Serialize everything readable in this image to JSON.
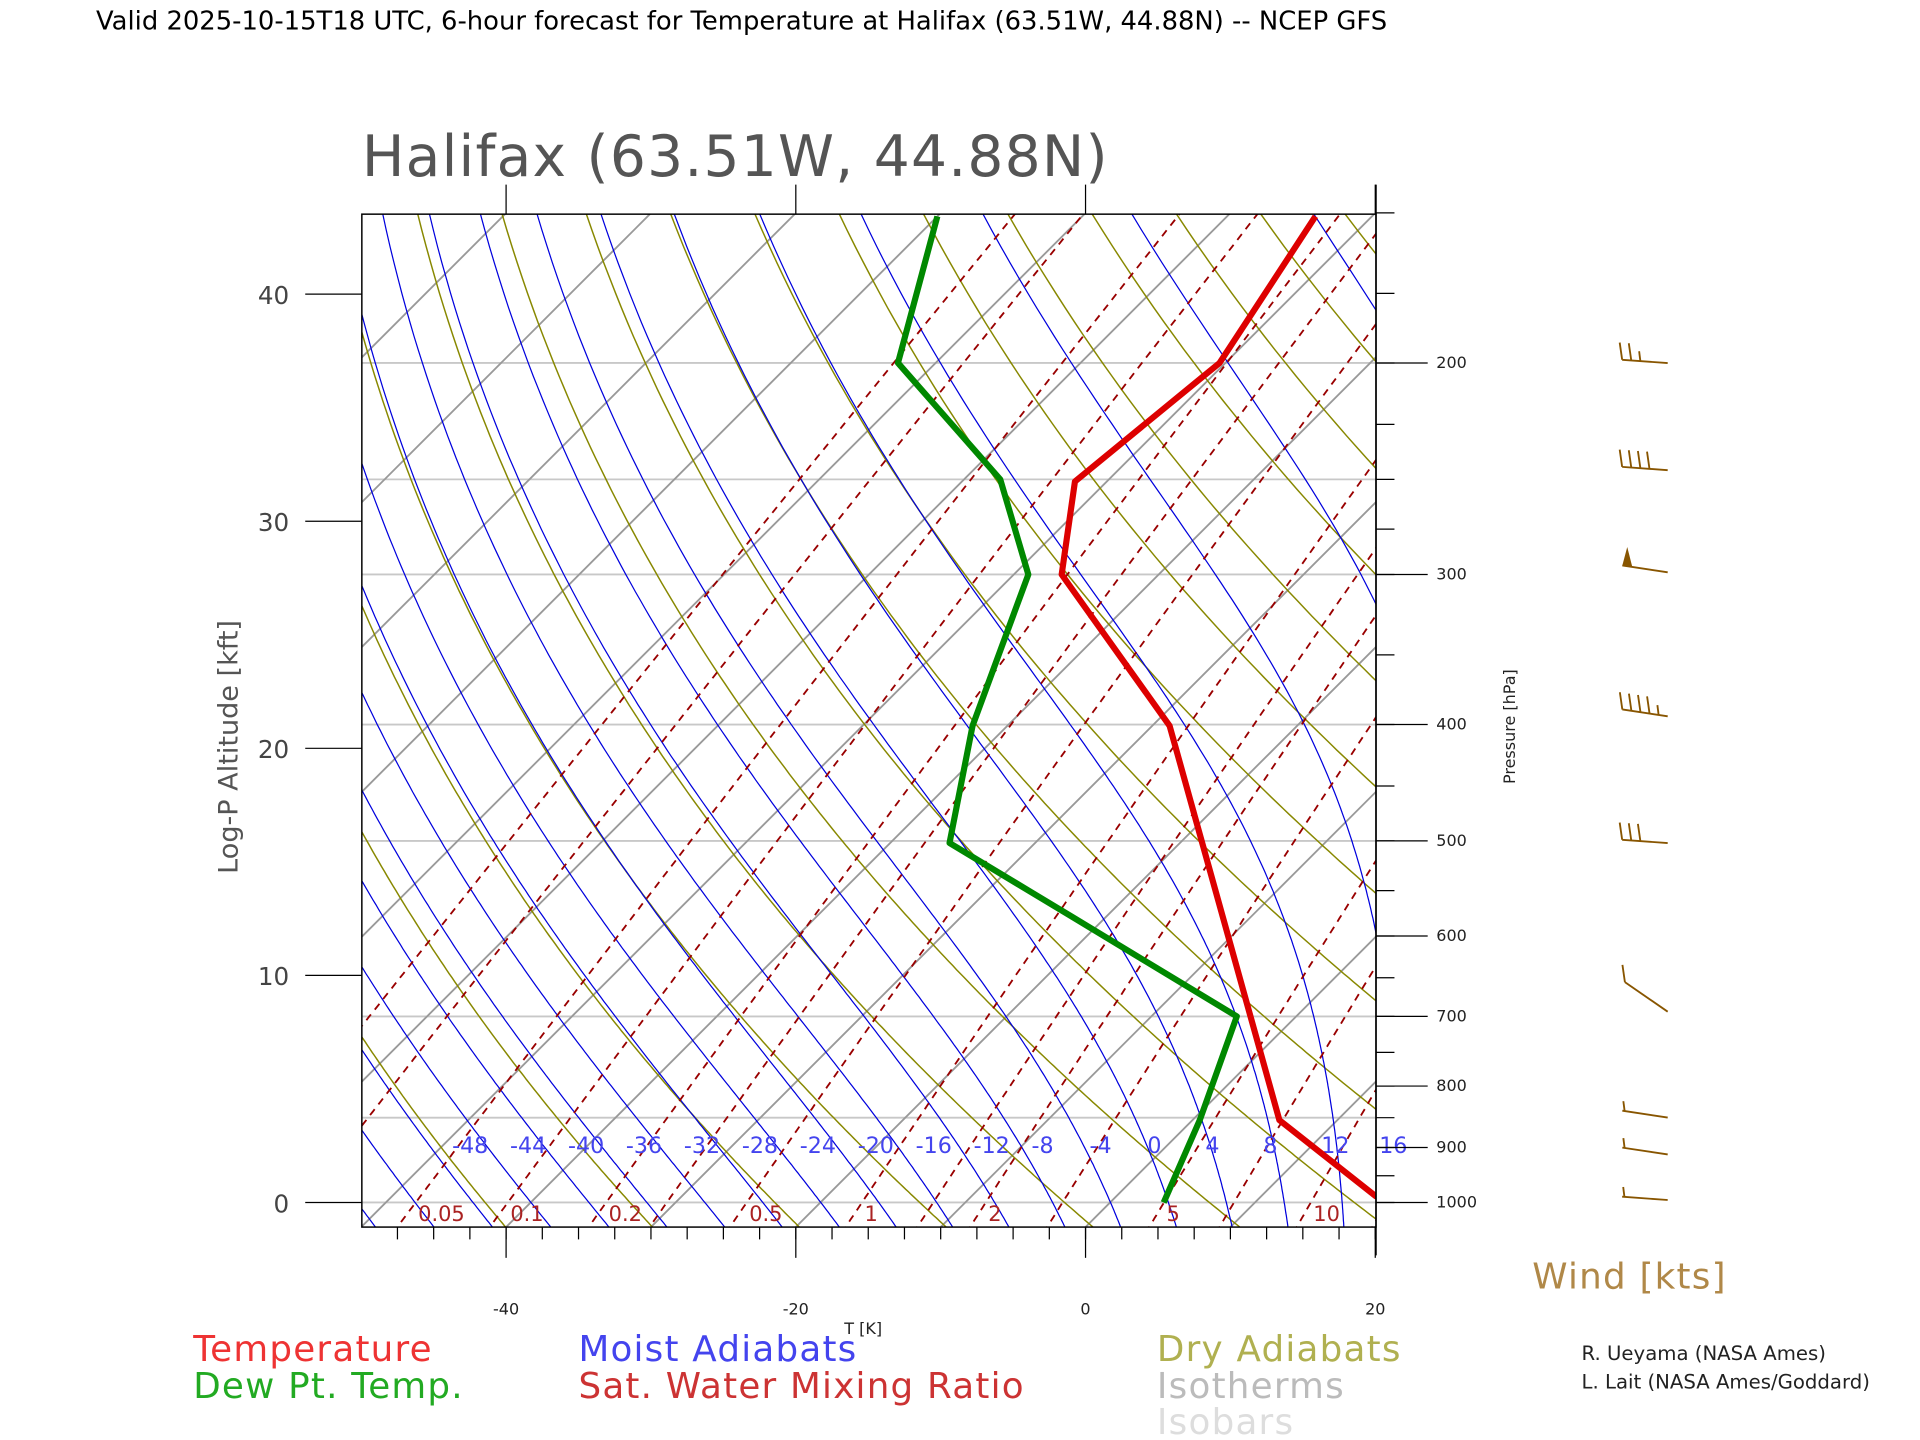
{
  "header": {
    "title": "Valid 2025-10-15T18 UTC, 6-hour forecast for Temperature at Halifax (63.51W, 44.88N) -- NCEP GFS"
  },
  "plot": {
    "station_title": "Halifax (63.51W, 44.88N)",
    "left_axis_label": "Log-P Altitude [kft]",
    "right_axis_label": "Pressure [hPa]",
    "bottom_axis_label": "T [K]",
    "wind_label": "Wind [kts]"
  },
  "legend": {
    "temperature": "Temperature",
    "dewpoint": "Dew Pt. Temp.",
    "moist": "Moist Adiabats",
    "mixing": "Sat. Water Mixing Ratio",
    "dry": "Dry Adiabats",
    "isotherms": "Isotherms",
    "isobars": "Isobars"
  },
  "credits": [
    "R. Ueyama (NASA Ames)",
    "L. Lait (NASA Ames/Goddard)"
  ],
  "colors": {
    "temperature": "#dd0000",
    "dewpoint": "#008800",
    "moist": "#0000dd",
    "mixing": "#990000",
    "dry": "#888800",
    "isotherm": "#999999",
    "isobar": "#c8c8c8",
    "wind": "#885500"
  },
  "chart_data": {
    "type": "line",
    "title": "Halifax (63.51W, 44.88N)",
    "xlabel": "T [K]",
    "ylabel": "Log-P Altitude [kft]",
    "y2label": "Pressure [hPa]",
    "xlim": [
      -50,
      20
    ],
    "pressure_range": [
      1050,
      144
    ],
    "x_ticks": [
      "-40",
      "-20",
      "0",
      "20"
    ],
    "x_tick_values": [
      -40,
      -20,
      0,
      20
    ],
    "y_ticks": [
      "0",
      "10",
      "20",
      "30",
      "40"
    ],
    "y_tick_values": [
      0,
      10,
      20,
      30,
      40
    ],
    "p_ticks": [
      "1000",
      "900",
      "800",
      "700",
      "600",
      "500",
      "400",
      "300",
      "200"
    ],
    "p_tick_values": [
      1000,
      900,
      800,
      700,
      600,
      500,
      400,
      300,
      200
    ],
    "isobars": [
      1000,
      850,
      700,
      500,
      400,
      300,
      250,
      200
    ],
    "moist_labels": [
      "-48",
      "-44",
      "-40",
      "-36",
      "-32",
      "-28",
      "-24",
      "-20",
      "-16",
      "-12",
      "-8",
      "-4",
      "0",
      "4",
      "8",
      "12",
      "16"
    ],
    "moist_label_values": [
      -48,
      -44,
      -40,
      -36,
      -32,
      -28,
      -24,
      -20,
      -16,
      -12,
      -8,
      -4,
      0,
      4,
      8,
      12,
      16
    ],
    "mixing_labels": [
      "0.05",
      "0.1",
      "0.2",
      "0.5",
      "1",
      "2",
      "5",
      "10"
    ],
    "mixing_label_values": [
      0.05,
      0.1,
      0.2,
      0.5,
      1,
      2,
      5,
      10
    ],
    "series": [
      {
        "name": "Temperature",
        "pressure": [
          1000,
          988,
          854,
          724,
          401,
          300,
          251,
          200,
          151
        ],
        "values": [
          19.5,
          17.9,
          6.0,
          -1.6,
          -28.8,
          -46.7,
          -52.2,
          -50.4,
          -53.9
        ]
      },
      {
        "name": "Dew Pt. Temp.",
        "pressure": [
          1000,
          854,
          700,
          578,
          502,
          401,
          300,
          250,
          200,
          151
        ],
        "values": [
          3.7,
          0.5,
          -4.1,
          -22.4,
          -35.9,
          -42.4,
          -49.0,
          -57.5,
          -72.6,
          -80.0
        ]
      }
    ],
    "wind": {
      "pressure": [
        200,
        250,
        300,
        400,
        500,
        700,
        850,
        925,
        1000
      ],
      "speed_kts": [
        25,
        40,
        50,
        45,
        30,
        10,
        5,
        5,
        5
      ],
      "direction_deg": [
        270,
        270,
        275,
        275,
        270,
        290,
        275,
        275,
        270
      ]
    }
  }
}
